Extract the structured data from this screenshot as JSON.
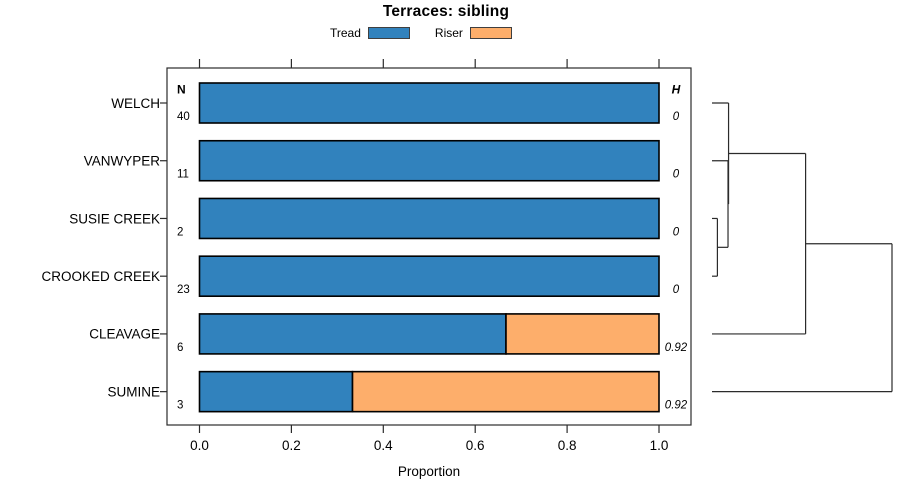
{
  "chart_data": {
    "type": "bar",
    "orientation": "horizontal-stacked",
    "title": "Terraces: sibling",
    "xlabel": "Proportion",
    "xlim": [
      0,
      1
    ],
    "xticks": [
      "0.0",
      "0.2",
      "0.4",
      "0.6",
      "0.8",
      "1.0"
    ],
    "grid": false,
    "legend_position": "top",
    "categories": [
      "WELCH",
      "VANWYPER",
      "SUSIE CREEK",
      "CROOKED CREEK",
      "CLEAVAGE",
      "SUMINE"
    ],
    "columns": {
      "left_header": "N",
      "right_header": "H"
    },
    "n_values": [
      40,
      11,
      2,
      23,
      6,
      3
    ],
    "h_values": [
      "0",
      "0",
      "0",
      "0",
      "0.92",
      "0.92"
    ],
    "series": [
      {
        "name": "Tread",
        "color": "#3182bd",
        "values": [
          1,
          1,
          1,
          1,
          0.667,
          0.333
        ]
      },
      {
        "name": "Riser",
        "color": "#fdae6b",
        "values": [
          0,
          0,
          0,
          0,
          0.333,
          0.667
        ]
      }
    ],
    "bar_border_color": "#000000",
    "axis_line_color": "#2b2b2b",
    "dendrogram": {
      "side": "right",
      "line_color": "#2b2b2b",
      "merges": [
        {
          "a": "SUSIE CREEK",
          "b": "CROOKED CREEK",
          "h": 0.03
        },
        {
          "a": "VANWYPER",
          "b": "M0",
          "h": 0.089
        },
        {
          "a": "WELCH",
          "b": "M1",
          "h": 0.092
        },
        {
          "a": "M2",
          "b": "CLEAVAGE",
          "h": 0.52
        },
        {
          "a": "M3",
          "b": "SUMINE",
          "h": 1.0
        }
      ]
    }
  }
}
